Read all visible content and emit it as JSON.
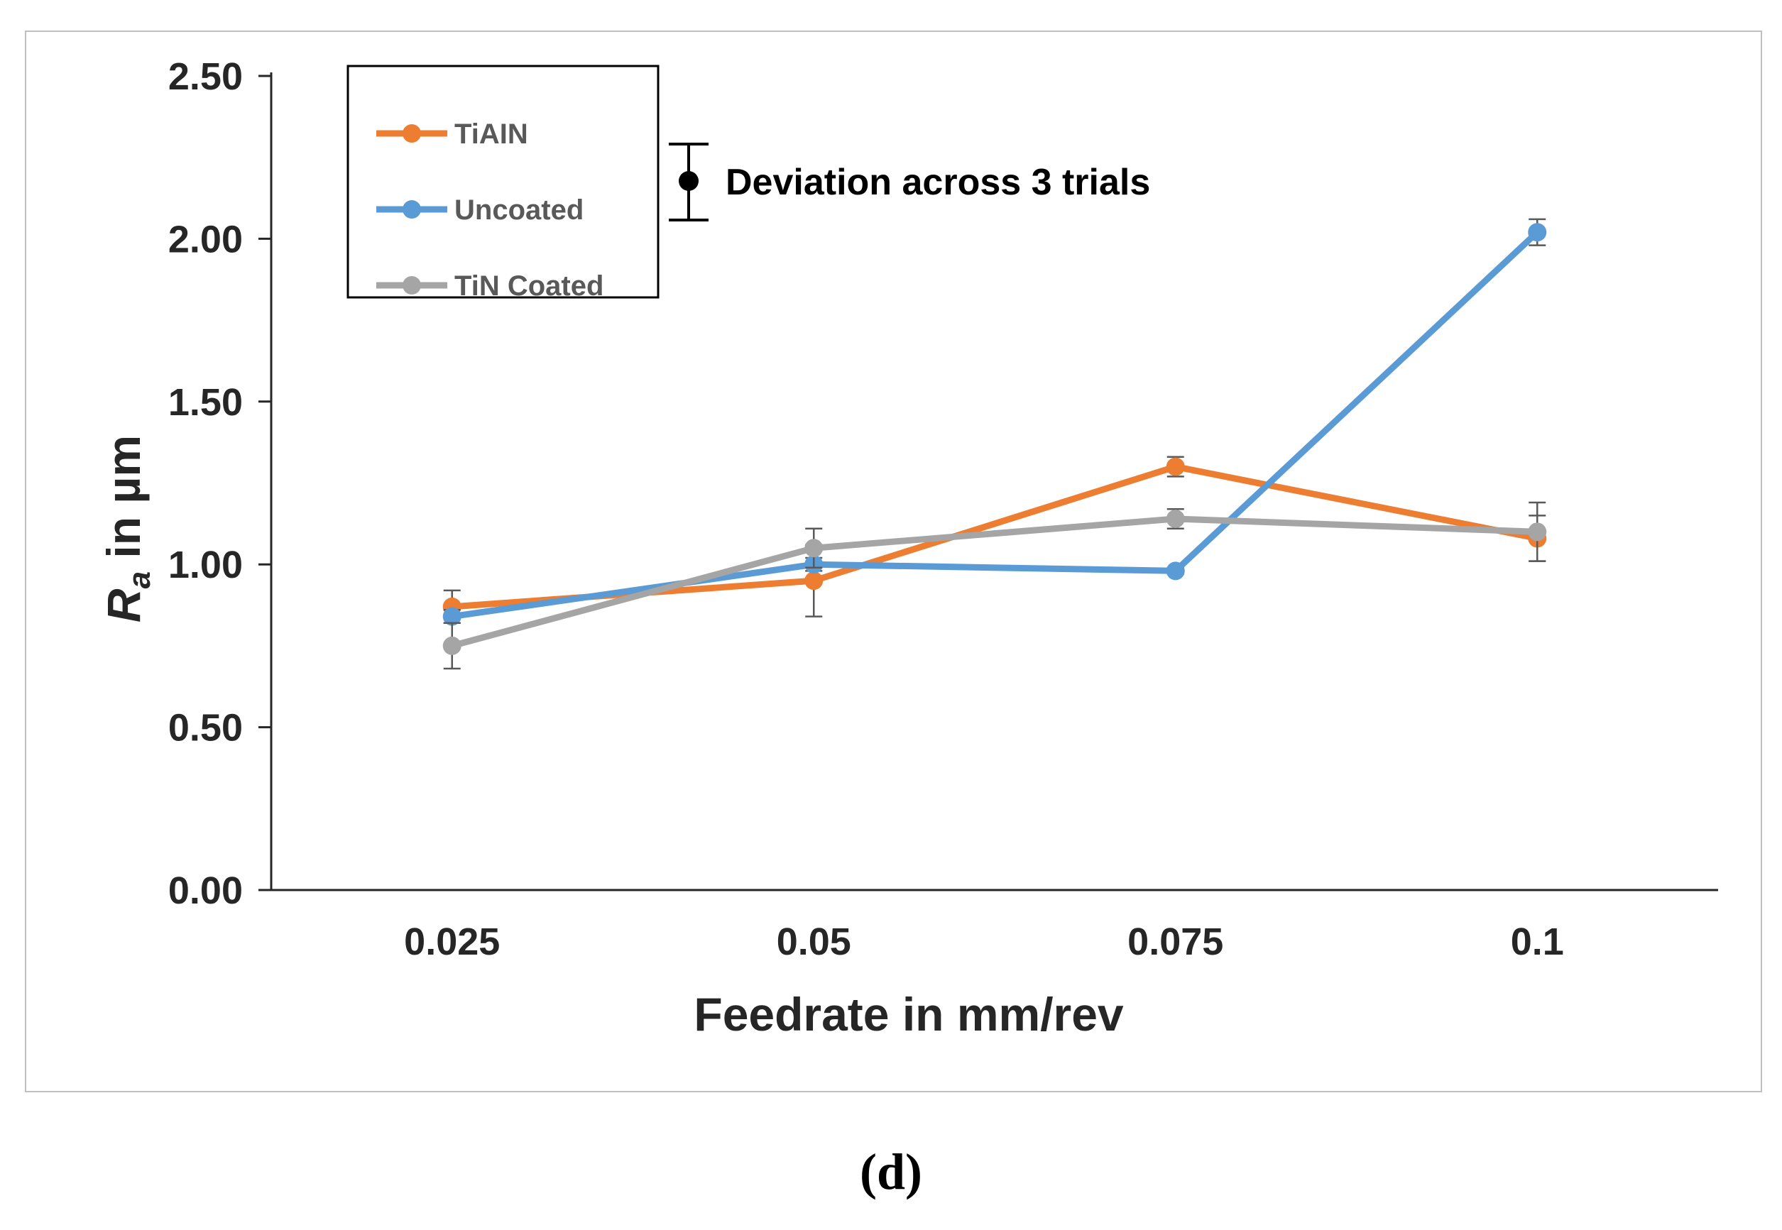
{
  "panel_label": "(d)",
  "colors": {
    "TiAIN": "#ed7d31",
    "Uncoated": "#5b9bd5",
    "TiN Coated": "#a5a5a5",
    "axis": "#262626",
    "error_bar": "#595959"
  },
  "chart_data": {
    "type": "line",
    "title": "",
    "xlabel": "Feedrate in mm/rev",
    "ylabel_main": "R",
    "ylabel_sub": "a",
    "ylabel_rest": " in µm",
    "categories": [
      "0.025",
      "0.05",
      "0.075",
      "0.1"
    ],
    "ylim": [
      0,
      2.5
    ],
    "yticks": [
      0,
      0.5,
      1.0,
      1.5,
      2.0,
      2.5
    ],
    "ytick_labels": [
      "0.00",
      "0.50",
      "1.00",
      "1.50",
      "2.00",
      "2.50"
    ],
    "series": [
      {
        "name": "TiAIN",
        "values": [
          0.87,
          0.95,
          1.3,
          1.08
        ],
        "errors": [
          0.05,
          0.11,
          0.03,
          0.07
        ]
      },
      {
        "name": "Uncoated",
        "values": [
          0.84,
          1.0,
          0.98,
          2.02
        ],
        "errors": [
          0.02,
          0.02,
          0.01,
          0.04
        ]
      },
      {
        "name": "TiN Coated",
        "values": [
          0.75,
          1.05,
          1.14,
          1.1
        ],
        "errors": [
          0.07,
          0.06,
          0.03,
          0.09
        ]
      }
    ],
    "legend": {
      "placement": "top-left",
      "entries": [
        "TiAIN",
        "Uncoated",
        "TiN Coated"
      ]
    },
    "annotation": "Deviation across 3 trials"
  }
}
